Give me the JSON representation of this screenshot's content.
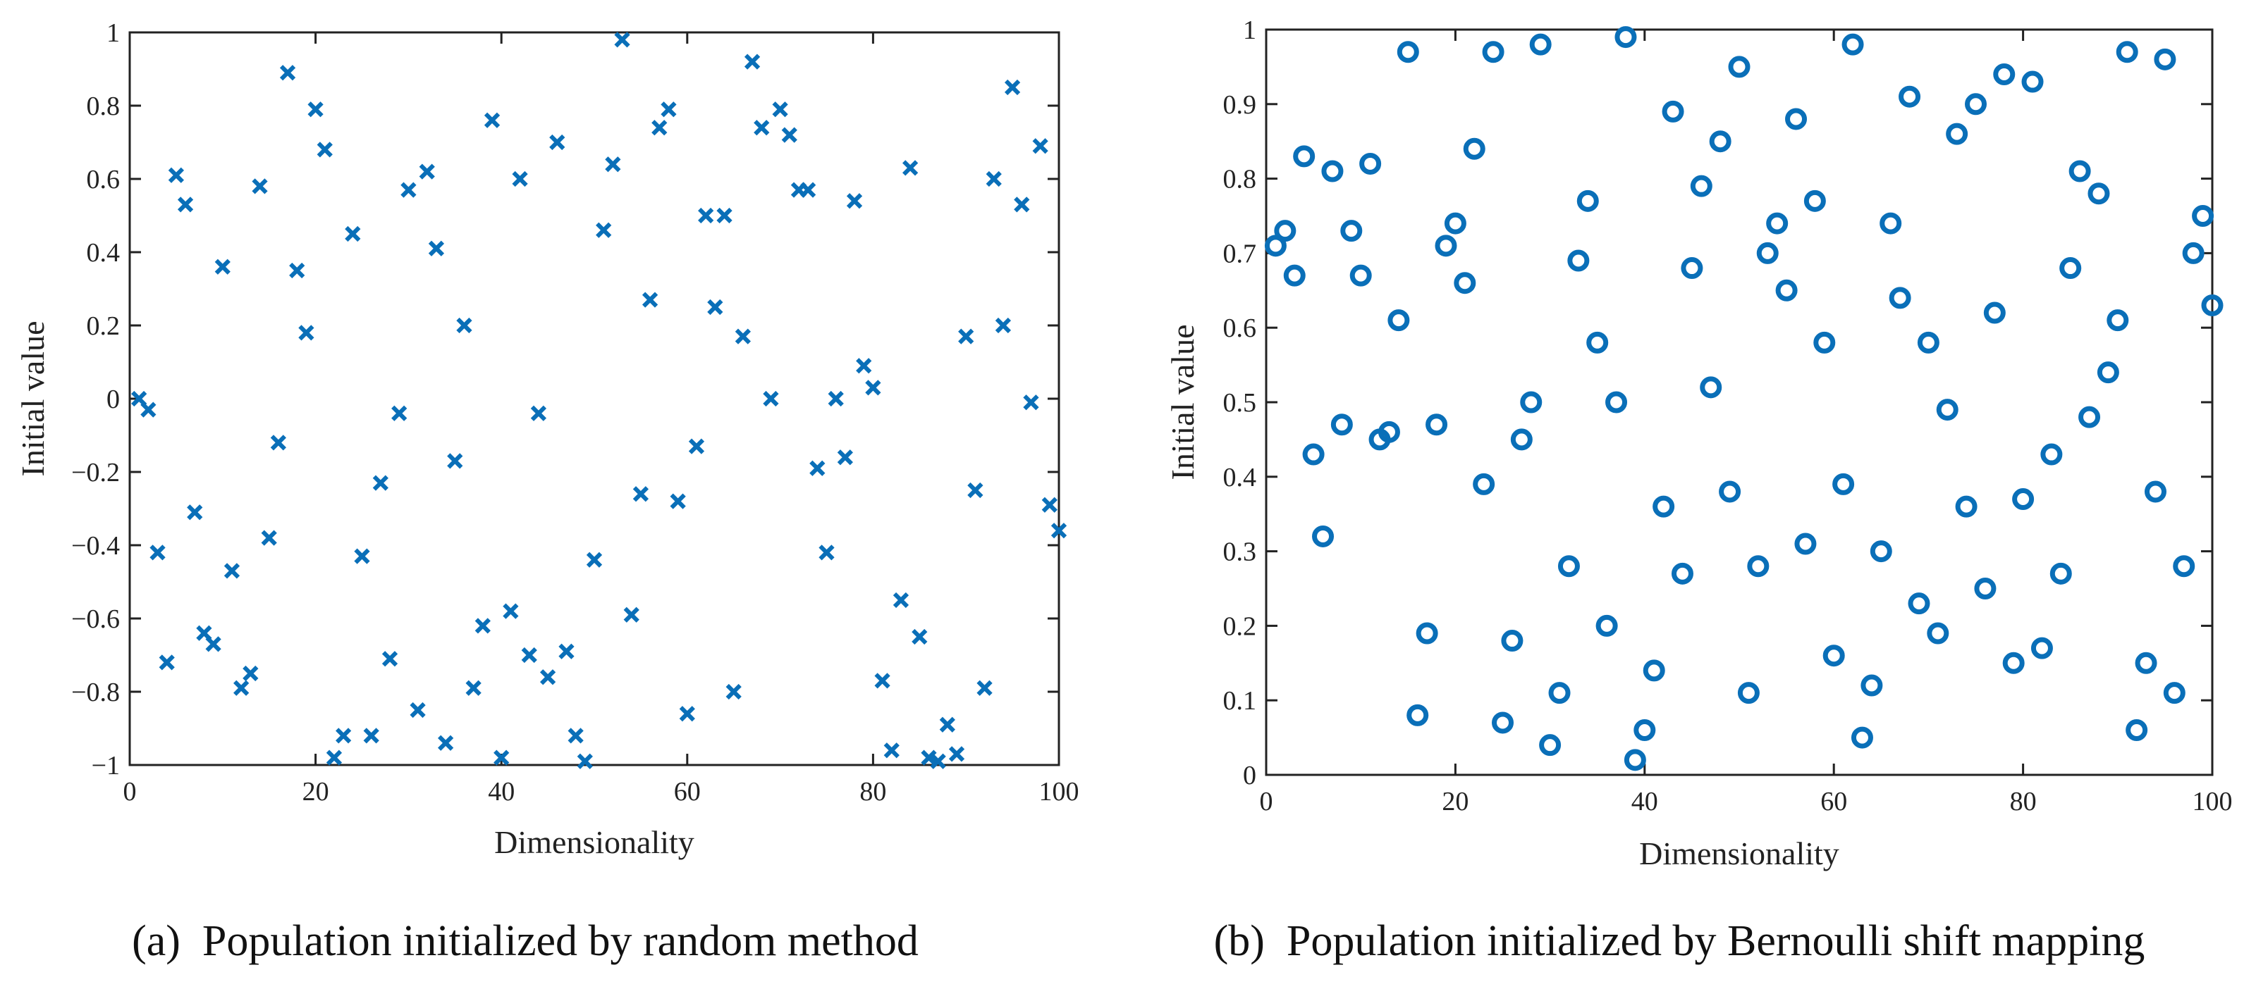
{
  "chart_data": [
    {
      "type": "scatter",
      "marker": "x",
      "color": "#0a6fb8",
      "caption": "(a)  Population initialized by random method",
      "xlabel": "Dimensionality",
      "ylabel": "Initial value",
      "xlim": [
        0,
        100
      ],
      "ylim": [
        -1,
        1
      ],
      "xticks": [
        0,
        20,
        40,
        60,
        80,
        100
      ],
      "xtick_labels": [
        "0",
        "20",
        "40",
        "60",
        "80",
        "100"
      ],
      "yticks": [
        -1,
        -0.8,
        -0.6,
        -0.4,
        -0.2,
        0,
        0.2,
        0.4,
        0.6,
        0.8,
        1
      ],
      "ytick_labels": [
        "−1",
        "−0.8",
        "−0.6",
        "−0.4",
        "−0.2",
        "0",
        "0.2",
        "0.4",
        "0.6",
        "0.8",
        "1"
      ],
      "x": [
        1,
        2,
        3,
        4,
        5,
        6,
        7,
        8,
        9,
        10,
        11,
        12,
        13,
        14,
        15,
        16,
        17,
        18,
        19,
        20,
        21,
        22,
        23,
        24,
        25,
        26,
        27,
        28,
        29,
        30,
        31,
        32,
        33,
        34,
        35,
        36,
        37,
        38,
        39,
        40,
        41,
        42,
        43,
        44,
        45,
        46,
        47,
        48,
        49,
        50,
        51,
        52,
        53,
        54,
        55,
        56,
        57,
        58,
        59,
        60,
        61,
        62,
        63,
        64,
        65,
        66,
        67,
        68,
        69,
        70,
        71,
        72,
        73,
        74,
        75,
        76,
        77,
        78,
        79,
        80,
        81,
        82,
        83,
        84,
        85,
        86,
        87,
        88,
        89,
        90,
        91,
        92,
        93,
        94,
        95,
        96,
        97,
        98,
        99,
        100
      ],
      "y": [
        0.0,
        -0.03,
        -0.42,
        -0.72,
        0.61,
        0.53,
        -0.31,
        -0.64,
        -0.67,
        0.36,
        -0.47,
        -0.79,
        -0.75,
        0.58,
        -0.38,
        -0.12,
        0.89,
        0.35,
        0.18,
        0.79,
        0.68,
        -0.98,
        -0.92,
        0.45,
        -0.43,
        -0.92,
        -0.23,
        -0.71,
        -0.04,
        0.57,
        -0.85,
        0.62,
        0.41,
        -0.94,
        -0.17,
        0.2,
        -0.79,
        -0.62,
        0.76,
        -0.98,
        -0.58,
        0.6,
        -0.7,
        -0.04,
        -0.76,
        0.7,
        -0.69,
        -0.92,
        -0.99,
        -0.44,
        0.46,
        0.64,
        0.98,
        -0.59,
        -0.26,
        0.27,
        0.74,
        0.79,
        -0.28,
        -0.86,
        -0.13,
        0.5,
        0.25,
        0.5,
        -0.8,
        0.17,
        0.92,
        0.74,
        0.0,
        0.79,
        0.72,
        0.57,
        0.57,
        -0.19,
        -0.42,
        0.0,
        -0.16,
        0.54,
        0.09,
        0.03,
        -0.77,
        -0.96,
        -0.55,
        0.63,
        -0.65,
        -0.98,
        -0.99,
        -0.89,
        -0.97,
        0.17,
        -0.25,
        -0.79,
        0.6,
        0.2,
        0.85,
        0.53,
        -0.01,
        0.69,
        -0.29,
        -0.36
      ]
    },
    {
      "type": "scatter",
      "marker": "o",
      "color": "#0a6fb8",
      "caption": "(b)  Population initialized by Bernoulli shift mapping",
      "xlabel": "Dimensionality",
      "ylabel": "Initial value",
      "xlim": [
        0,
        100
      ],
      "ylim": [
        0,
        1
      ],
      "xticks": [
        0,
        20,
        40,
        60,
        80,
        100
      ],
      "xtick_labels": [
        "0",
        "20",
        "40",
        "60",
        "80",
        "100"
      ],
      "yticks": [
        0,
        0.1,
        0.2,
        0.3,
        0.4,
        0.5,
        0.6,
        0.7,
        0.8,
        0.9,
        1
      ],
      "ytick_labels": [
        "0",
        "0.1",
        "0.2",
        "0.3",
        "0.4",
        "0.5",
        "0.6",
        "0.7",
        "0.8",
        "0.9",
        "1"
      ],
      "x": [
        1,
        2,
        3,
        4,
        5,
        6,
        7,
        8,
        9,
        10,
        11,
        12,
        13,
        14,
        15,
        16,
        17,
        18,
        19,
        20,
        21,
        22,
        23,
        24,
        25,
        26,
        27,
        28,
        29,
        30,
        31,
        32,
        33,
        34,
        35,
        36,
        37,
        38,
        39,
        40,
        41,
        42,
        43,
        44,
        45,
        46,
        47,
        48,
        49,
        50,
        51,
        52,
        53,
        54,
        55,
        56,
        57,
        58,
        59,
        60,
        61,
        62,
        63,
        64,
        65,
        66,
        67,
        68,
        69,
        70,
        71,
        72,
        73,
        74,
        75,
        76,
        77,
        78,
        79,
        80,
        81,
        82,
        83,
        84,
        85,
        86,
        87,
        88,
        89,
        90,
        91,
        92,
        93,
        94,
        95,
        96,
        97,
        98,
        99,
        100
      ],
      "y": [
        0.71,
        0.73,
        0.67,
        0.83,
        0.43,
        0.32,
        0.81,
        0.47,
        0.73,
        0.67,
        0.82,
        0.45,
        0.46,
        0.61,
        0.97,
        0.08,
        0.19,
        0.47,
        0.71,
        0.74,
        0.66,
        0.84,
        0.39,
        0.97,
        0.07,
        0.18,
        0.45,
        0.5,
        0.98,
        0.04,
        0.11,
        0.28,
        0.69,
        0.77,
        0.58,
        0.2,
        0.5,
        0.99,
        0.02,
        0.06,
        0.14,
        0.36,
        0.89,
        0.27,
        0.68,
        0.79,
        0.52,
        0.85,
        0.38,
        0.95,
        0.11,
        0.28,
        0.7,
        0.74,
        0.65,
        0.88,
        0.31,
        0.77,
        0.58,
        0.16,
        0.39,
        0.98,
        0.05,
        0.12,
        0.3,
        0.74,
        0.64,
        0.91,
        0.23,
        0.58,
        0.19,
        0.49,
        0.86,
        0.36,
        0.9,
        0.25,
        0.62,
        0.94,
        0.15,
        0.37,
        0.93,
        0.17,
        0.43,
        0.27,
        0.68,
        0.81,
        0.48,
        0.78,
        0.54,
        0.61,
        0.97,
        0.06,
        0.15,
        0.38,
        0.96,
        0.11,
        0.28,
        0.7,
        0.75,
        0.63
      ]
    }
  ]
}
